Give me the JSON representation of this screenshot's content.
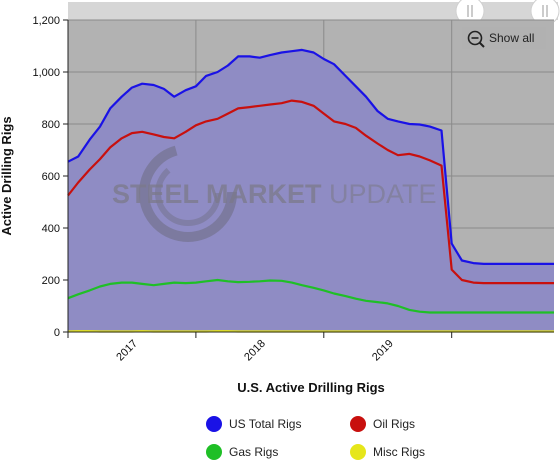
{
  "chart_data": {
    "type": "area",
    "title": "U.S. Active Drilling Rigs",
    "ylabel": "Active Drilling Rigs",
    "xlabel": "",
    "ylim": [
      0,
      1200
    ],
    "yticks": [
      0,
      200,
      400,
      600,
      800,
      1000,
      1200
    ],
    "ytick_labels": [
      "0",
      "200",
      "400",
      "600",
      "800",
      "1,000",
      "1,200"
    ],
    "xlim": [
      2016.5,
      2020.3
    ],
    "xticks": [
      {
        "value": 2017,
        "label": "2017"
      },
      {
        "value": 2018,
        "label": "2018"
      },
      {
        "value": 2019,
        "label": "2019"
      }
    ],
    "year_boundaries": [
      2016.5,
      2017.5,
      2018.5,
      2019.5
    ],
    "grid": true,
    "legend_position": "bottom",
    "watermark": "STEEL MARKET UPDATE",
    "x": [
      2016.5,
      2016.58,
      2016.67,
      2016.75,
      2016.83,
      2016.92,
      2017.0,
      2017.08,
      2017.17,
      2017.25,
      2017.33,
      2017.42,
      2017.5,
      2017.58,
      2017.67,
      2017.75,
      2017.83,
      2017.92,
      2018.0,
      2018.08,
      2018.17,
      2018.25,
      2018.33,
      2018.42,
      2018.5,
      2018.58,
      2018.67,
      2018.75,
      2018.83,
      2018.92,
      2019.0,
      2019.08,
      2019.17,
      2019.25,
      2019.33,
      2019.42,
      2019.5,
      2019.58,
      2019.67,
      2019.75,
      2019.83,
      2019.92,
      2020.0,
      2020.08,
      2020.17,
      2020.25,
      2020.3
    ],
    "series": [
      {
        "name": "US Total Rigs",
        "color": "#1a12e6",
        "values": [
          655,
          675,
          740,
          790,
          860,
          905,
          940,
          955,
          950,
          935,
          905,
          930,
          945,
          985,
          1000,
          1025,
          1060,
          1060,
          1055,
          1065,
          1075,
          1080,
          1085,
          1075,
          1050,
          1030,
          985,
          945,
          905,
          850,
          820,
          810,
          800,
          798,
          790,
          775,
          340,
          275,
          265,
          262,
          262,
          262,
          262,
          262,
          262,
          262,
          262
        ]
      },
      {
        "name": "Oil Rigs",
        "color": "#c8100e",
        "values": [
          525,
          575,
          625,
          665,
          710,
          745,
          765,
          770,
          760,
          750,
          745,
          770,
          795,
          810,
          820,
          840,
          860,
          865,
          870,
          875,
          880,
          890,
          885,
          870,
          840,
          810,
          800,
          785,
          755,
          725,
          700,
          680,
          685,
          675,
          660,
          640,
          240,
          200,
          190,
          188,
          188,
          188,
          188,
          188,
          188,
          188,
          188
        ]
      },
      {
        "name": "Gas Rigs",
        "color": "#1fbf26",
        "values": [
          130,
          145,
          160,
          175,
          185,
          190,
          190,
          185,
          180,
          185,
          190,
          188,
          190,
          195,
          200,
          195,
          192,
          193,
          195,
          198,
          197,
          190,
          180,
          170,
          160,
          148,
          138,
          128,
          120,
          115,
          110,
          100,
          85,
          78,
          75,
          75,
          75,
          75,
          75,
          75,
          75,
          75,
          75,
          75,
          75,
          75,
          75
        ]
      },
      {
        "name": "Misc Rigs",
        "color": "#e6e61a",
        "values": [
          2,
          3,
          3,
          2,
          2,
          2,
          2,
          3,
          2,
          2,
          2,
          2,
          2,
          2,
          3,
          3,
          2,
          2,
          2,
          2,
          2,
          2,
          2,
          2,
          2,
          2,
          2,
          2,
          2,
          2,
          2,
          2,
          2,
          2,
          2,
          2,
          2,
          2,
          2,
          2,
          2,
          2,
          2,
          2,
          2,
          2,
          2
        ]
      }
    ],
    "legend": [
      {
        "name": "US Total Rigs",
        "color": "#1a12e6"
      },
      {
        "name": "Oil Rigs",
        "color": "#c8100e"
      },
      {
        "name": "Gas Rigs",
        "color": "#1fbf26"
      },
      {
        "name": "Misc Rigs",
        "color": "#e6e61a"
      }
    ]
  },
  "controls": {
    "show_all_label": "Show all",
    "zoom_icon": "zoom-out-icon",
    "slider_handle_icon": "grip-icon"
  },
  "colors": {
    "plot_background": "#b2b2b2",
    "area_fill": "#8f8cc4",
    "grid": "#8a8a8a",
    "navigator": "#d6d6d6"
  }
}
